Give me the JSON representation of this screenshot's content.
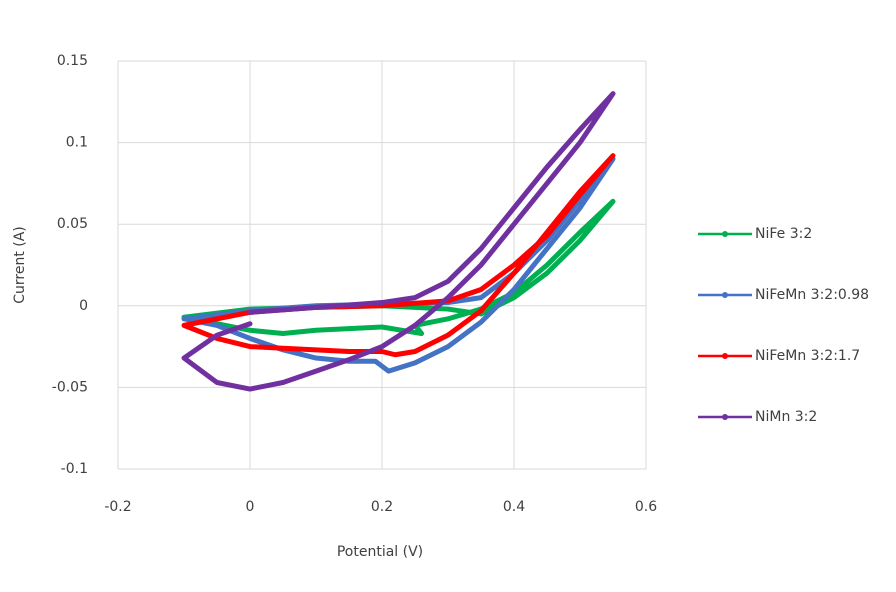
{
  "chart_data": {
    "type": "line",
    "x_label": "Potential (V)",
    "y_label": "Current (A)",
    "xlim": [
      -0.2,
      0.6
    ],
    "xticks": [
      -0.2,
      0,
      0.2,
      0.4,
      0.6
    ],
    "ylim": [
      -0.1,
      0.15
    ],
    "yticks": [
      -0.1,
      -0.05,
      0,
      0.05,
      0.1,
      0.15
    ],
    "grid": true,
    "legend": "right",
    "series": [
      {
        "name": "NiFe 3:2",
        "color": "#00b050",
        "x": [
          -0.1,
          0,
          0.1,
          0.2,
          0.3,
          0.35,
          0.4,
          0.45,
          0.5,
          0.55,
          0.5,
          0.45,
          0.4,
          0.35,
          0.3,
          0.25,
          0.26,
          0.2,
          0.1,
          0.05,
          0,
          -0.05,
          -0.1
        ],
        "values": [
          -0.007,
          -0.002,
          -0.001,
          0,
          -0.002,
          -0.005,
          0.005,
          0.02,
          0.04,
          0.064,
          0.045,
          0.025,
          0.008,
          -0.002,
          -0.008,
          -0.012,
          -0.017,
          -0.013,
          -0.015,
          -0.017,
          -0.015,
          -0.011,
          -0.007
        ]
      },
      {
        "name": "NiFeMn 3:2:0.98",
        "color": "#4472c4",
        "x": [
          -0.1,
          0,
          0.1,
          0.2,
          0.3,
          0.35,
          0.4,
          0.45,
          0.5,
          0.55,
          0.5,
          0.45,
          0.4,
          0.35,
          0.3,
          0.25,
          0.21,
          0.19,
          0.15,
          0.1,
          0.05,
          0,
          -0.05,
          -0.1
        ],
        "values": [
          -0.008,
          -0.003,
          0,
          0.001,
          0.002,
          0.005,
          0.02,
          0.04,
          0.065,
          0.09,
          0.06,
          0.035,
          0.01,
          -0.01,
          -0.025,
          -0.035,
          -0.04,
          -0.034,
          -0.034,
          -0.032,
          -0.027,
          -0.02,
          -0.012,
          -0.008
        ]
      },
      {
        "name": "NiFeMn 3:2:1.7",
        "color": "#ff0000",
        "x": [
          -0.1,
          0,
          0.1,
          0.2,
          0.3,
          0.35,
          0.4,
          0.45,
          0.5,
          0.55,
          0.5,
          0.45,
          0.4,
          0.35,
          0.3,
          0.25,
          0.22,
          0.2,
          0.15,
          0.1,
          0.05,
          0,
          -0.05,
          -0.1
        ],
        "values": [
          -0.012,
          -0.004,
          -0.001,
          0,
          0.003,
          0.01,
          0.025,
          0.043,
          0.068,
          0.092,
          0.07,
          0.045,
          0.02,
          -0.003,
          -0.018,
          -0.028,
          -0.03,
          -0.028,
          -0.028,
          -0.027,
          -0.026,
          -0.025,
          -0.02,
          -0.012
        ]
      },
      {
        "name": "NiMn 3:2",
        "color": "#7030a0",
        "x": [
          0,
          0.1,
          0.2,
          0.25,
          0.3,
          0.35,
          0.4,
          0.45,
          0.5,
          0.55,
          0.5,
          0.45,
          0.4,
          0.35,
          0.3,
          0.25,
          0.2,
          0.15,
          0.1,
          0.05,
          0,
          -0.05,
          -0.1,
          -0.05,
          0
        ],
        "values": [
          -0.004,
          -0.001,
          0.002,
          0.005,
          0.015,
          0.035,
          0.06,
          0.085,
          0.108,
          0.13,
          0.1,
          0.075,
          0.05,
          0.025,
          0.005,
          -0.012,
          -0.025,
          -0.033,
          -0.04,
          -0.047,
          -0.051,
          -0.047,
          -0.032,
          -0.018,
          -0.011
        ]
      }
    ]
  }
}
